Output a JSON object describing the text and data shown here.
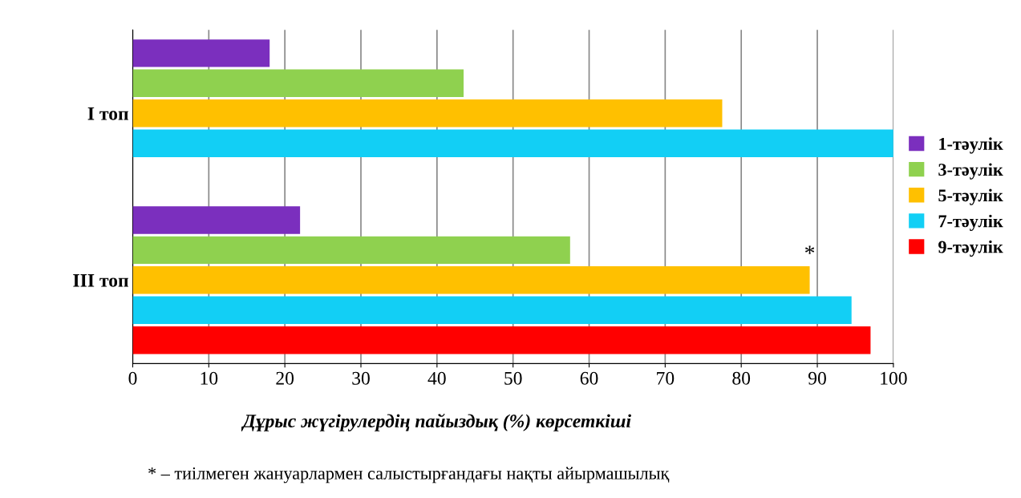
{
  "chart_data": {
    "type": "bar",
    "orientation": "horizontal",
    "xlabel": "Дұрыс жүгірулердің пайыздық (%) көрсеткіші",
    "categories": [
      "I топ",
      "III топ"
    ],
    "series": [
      {
        "name": "1-тәулік",
        "color": "#7b2fbe",
        "values": [
          18,
          22
        ]
      },
      {
        "name": "3-тәулік",
        "color": "#8fd14f",
        "values": [
          43.5,
          57.5
        ]
      },
      {
        "name": "5-тәулік",
        "color": "#ffc000",
        "values": [
          77.5,
          89
        ]
      },
      {
        "name": "7-тәулік",
        "color": "#12cff5",
        "values": [
          100,
          94.5
        ]
      },
      {
        "name": "9-тәулік",
        "color": "#ff0000",
        "values": [
          null,
          97
        ]
      }
    ],
    "xlim": [
      0,
      100
    ],
    "xticks": [
      0,
      10,
      20,
      30,
      40,
      50,
      60,
      70,
      80,
      90,
      100
    ],
    "grid": "x",
    "legend": "right",
    "annotations": [
      {
        "text": "*",
        "x": 89,
        "y": "III топ"
      },
      "* – тиілмеген жануарлармен салыстырғандағы нақты айырмашылық"
    ]
  }
}
